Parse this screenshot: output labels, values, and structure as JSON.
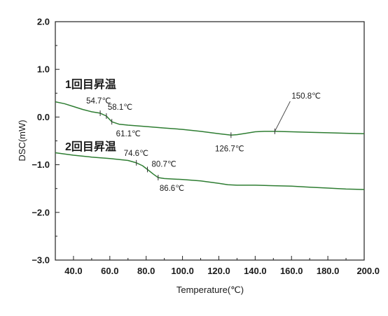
{
  "chart_data": {
    "type": "line",
    "title": "",
    "xlabel": "Temperature(℃)",
    "ylabel": "DSC(mW)",
    "xlim": [
      30,
      200
    ],
    "ylim": [
      -3.0,
      2.0
    ],
    "x_ticks": [
      "40.0",
      "60.0",
      "80.0",
      "100.0",
      "120.0",
      "140.0",
      "160.0",
      "180.0",
      "200.0"
    ],
    "y_ticks": [
      "2.0",
      "1.0",
      "0.0",
      "−1.0",
      "−2.0",
      "−3.0"
    ],
    "grid": false,
    "series": [
      {
        "name": "1回目昇温",
        "color": "#2e7d32",
        "x": [
          30,
          35,
          40,
          45,
          50,
          54.7,
          58.1,
          61.1,
          65,
          70,
          80,
          90,
          100,
          110,
          120,
          126.7,
          130,
          135,
          140,
          145,
          150.8,
          160,
          170,
          180,
          190,
          200
        ],
        "y": [
          0.32,
          0.28,
          0.22,
          0.16,
          0.11,
          0.08,
          0.02,
          -0.1,
          -0.15,
          -0.17,
          -0.2,
          -0.23,
          -0.26,
          -0.3,
          -0.35,
          -0.38,
          -0.37,
          -0.34,
          -0.31,
          -0.3,
          -0.3,
          -0.31,
          -0.32,
          -0.33,
          -0.34,
          -0.35
        ]
      },
      {
        "name": "2回目昇温",
        "color": "#2e7d32",
        "x": [
          30,
          40,
          50,
          60,
          70,
          74.6,
          78,
          80.7,
          84,
          86.6,
          90,
          95,
          100,
          110,
          120,
          125,
          130,
          140,
          150,
          160,
          170,
          180,
          190,
          200
        ],
        "y": [
          -0.75,
          -0.8,
          -0.84,
          -0.87,
          -0.91,
          -0.96,
          -1.02,
          -1.1,
          -1.2,
          -1.27,
          -1.29,
          -1.3,
          -1.31,
          -1.34,
          -1.39,
          -1.42,
          -1.43,
          -1.43,
          -1.44,
          -1.45,
          -1.47,
          -1.49,
          -1.51,
          -1.52
        ]
      }
    ],
    "annotations": [
      {
        "text": "54.7℃",
        "x": 54.7,
        "y": 0.08
      },
      {
        "text": "58.1℃",
        "x": 58.1,
        "y": 0.02
      },
      {
        "text": "61.1℃",
        "x": 61.1,
        "y": -0.1
      },
      {
        "text": "126.7℃",
        "x": 126.7,
        "y": -0.38
      },
      {
        "text": "150.8℃",
        "x": 150.8,
        "y": -0.3
      },
      {
        "text": "74.6℃",
        "x": 74.6,
        "y": -0.96
      },
      {
        "text": "80.7℃",
        "x": 80.7,
        "y": -1.1
      },
      {
        "text": "86.6℃",
        "x": 86.6,
        "y": -1.27
      }
    ]
  }
}
